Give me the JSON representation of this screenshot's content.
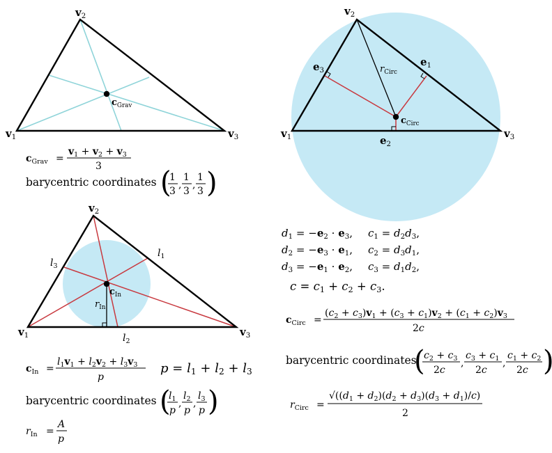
{
  "colors": {
    "circle_fill": "#c5e9f5",
    "median_line": "#8fd4d9",
    "red_line": "#c8393f",
    "triangle": "#000000"
  },
  "gravity": {
    "v1": {
      "b": "v",
      "s": "1"
    },
    "v2": {
      "b": "v",
      "s": "2"
    },
    "v3": {
      "b": "v",
      "s": "3"
    },
    "center": {
      "b": "c",
      "s": "Grav"
    },
    "formula": {
      "lhs": {
        "b": "c",
        "s": "Grav"
      },
      "num": [
        {
          "b": "v",
          "s": "1"
        },
        {
          "t": " + "
        },
        {
          "b": "v",
          "s": "2"
        },
        {
          "t": " + "
        },
        {
          "b": "v",
          "s": "3"
        }
      ],
      "den": "3"
    },
    "bary_label": "barycentric coordinates",
    "bary": [
      {
        "num": "1",
        "den": "3"
      },
      {
        "num": "1",
        "den": "3"
      },
      {
        "num": "1",
        "den": "3"
      }
    ]
  },
  "incircle": {
    "v1": {
      "b": "v",
      "s": "1"
    },
    "v2": {
      "b": "v",
      "s": "2"
    },
    "v3": {
      "b": "v",
      "s": "3"
    },
    "center": {
      "b": "c",
      "s": "In"
    },
    "radius": {
      "i": "r",
      "s": "In"
    },
    "l1": {
      "i": "l",
      "s": "1"
    },
    "l2": {
      "i": "l",
      "s": "2"
    },
    "l3": {
      "i": "l",
      "s": "3"
    },
    "formula": {
      "lhs": {
        "b": "c",
        "s": "In"
      },
      "num": [
        {
          "i": "l",
          "s": "1"
        },
        {
          "b": "v",
          "s": "1"
        },
        {
          "t": " + "
        },
        {
          "i": "l",
          "s": "2"
        },
        {
          "b": "v",
          "s": "2"
        },
        {
          "t": " + "
        },
        {
          "i": "l",
          "s": "3"
        },
        {
          "b": "v",
          "s": "3"
        }
      ],
      "den": "p"
    },
    "perimeter": "p = l1 + l2 + l3",
    "bary_label": "barycentric coordinates",
    "bary": [
      {
        "num": "l1",
        "den": "p"
      },
      {
        "num": "l2",
        "den": "p"
      },
      {
        "num": "l3",
        "den": "p"
      }
    ],
    "radius_formula": {
      "lhs": "r",
      "lhs_sub": "In",
      "num": "A",
      "den": "p"
    }
  },
  "circumcircle": {
    "v1": {
      "b": "v",
      "s": "1"
    },
    "v2": {
      "b": "v",
      "s": "2"
    },
    "v3": {
      "b": "v",
      "s": "3"
    },
    "e1": {
      "b": "e",
      "s": "1"
    },
    "e2": {
      "b": "e",
      "s": "2"
    },
    "e3": {
      "b": "e",
      "s": "3"
    },
    "center": {
      "b": "c",
      "s": "Circ"
    },
    "radius": {
      "i": "r",
      "s": "Circ"
    },
    "equations": [
      {
        "d": "d1 = −e2 · e3,",
        "c": "c1 = d2d3,"
      },
      {
        "d": "d2 = −e3 · e1,",
        "c": "c2 = d3d1,"
      },
      {
        "d": "d3 = −e1 · e2,",
        "c": "c3 = d1d2,"
      }
    ],
    "c_sum": "c = c1 + c2 + c3.",
    "formula": {
      "lhs": {
        "b": "c",
        "s": "Circ"
      },
      "num": "(c2 + c3)v1 + (c3 + c1)v2 + (c1 + c2)v3",
      "den": "2c"
    },
    "bary_label": "barycentric coordinates",
    "bary": [
      {
        "num": "c2 + c3",
        "den": "2c"
      },
      {
        "num": "c3 + c1",
        "den": "2c"
      },
      {
        "num": "c1 + c2",
        "den": "2c"
      }
    ],
    "radius_formula": {
      "lhs": "r",
      "lhs_sub": "Circ",
      "num": "√((d1 + d2)(d2 + d3)(d3 + d1)/c)",
      "den": "2"
    }
  }
}
